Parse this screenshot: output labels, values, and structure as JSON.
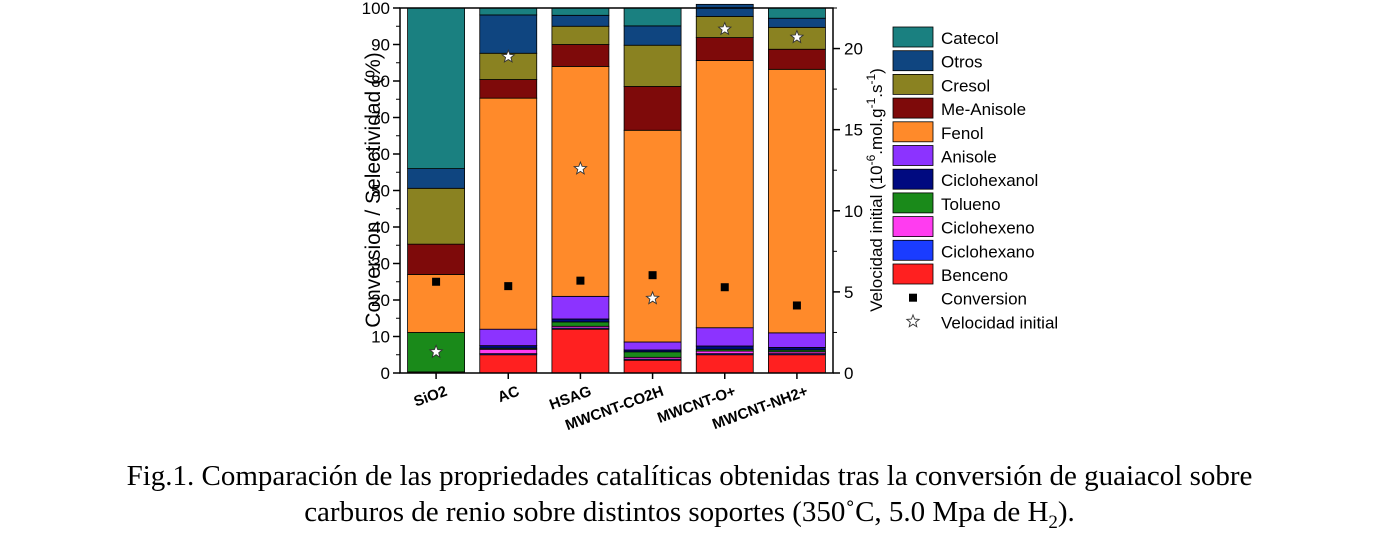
{
  "chart_data": {
    "type": "bar",
    "stacked": true,
    "categories": [
      "SiO2",
      "AC",
      "HSAG",
      "MWCNT-CO2H",
      "MWCNT-O+",
      "MWCNT-NH2+"
    ],
    "ylabel": "Conversion / Selectividad (%)",
    "ylim": [
      0,
      100
    ],
    "yticks": [
      0,
      10,
      20,
      30,
      40,
      50,
      60,
      70,
      80,
      90,
      100
    ],
    "y2label_parts": [
      "Velocidad initial (10",
      "-6",
      ".mol.g",
      "-1",
      ".s",
      "-1",
      ")"
    ],
    "y2lim": [
      0,
      22.5
    ],
    "y2ticks": [
      0,
      5,
      10,
      15,
      20
    ],
    "series": [
      {
        "name": "Benceno",
        "color": "#ff2020",
        "values": [
          0.3,
          5.0,
          12.0,
          3.5,
          5.0,
          5.0
        ]
      },
      {
        "name": "Ciclohexano",
        "color": "#1a3cff",
        "values": [
          0,
          0.3,
          0.3,
          0.3,
          0.3,
          0.3
        ]
      },
      {
        "name": "Ciclohexeno",
        "color": "#ff3cf0",
        "values": [
          0,
          1.2,
          0.5,
          0.5,
          0.7,
          0.5
        ]
      },
      {
        "name": "Tolueno",
        "color": "#1a8a1a",
        "values": [
          10.8,
          0.3,
          1.2,
          1.5,
          0.5,
          0.5
        ]
      },
      {
        "name": "Ciclohexanol",
        "color": "#000a80",
        "values": [
          0,
          0.7,
          0.8,
          0.5,
          0.9,
          0.7
        ]
      },
      {
        "name": "Anisole",
        "color": "#8c33ff",
        "values": [
          0,
          4.5,
          6.2,
          2.2,
          5.0,
          4.0
        ]
      },
      {
        "name": "Fenol",
        "color": "#ff8a2a",
        "values": [
          15.9,
          63.3,
          63.0,
          58.0,
          73.2,
          72.2
        ]
      },
      {
        "name": "Me-Anisole",
        "color": "#7e0a0a",
        "values": [
          8.3,
          5.1,
          6.0,
          12.0,
          6.3,
          5.5
        ]
      },
      {
        "name": "Cresol",
        "color": "#8a8221",
        "values": [
          15.3,
          7.2,
          5.0,
          11.3,
          5.8,
          6.0
        ]
      },
      {
        "name": "Otros",
        "color": "#0f4580",
        "values": [
          5.4,
          10.5,
          3.0,
          5.3,
          3.3,
          2.5
        ]
      },
      {
        "name": "Catecol",
        "color": "#1a8080",
        "values": [
          44.0,
          1.9,
          2.0,
          4.9,
          0,
          2.8
        ]
      }
    ],
    "conversion": {
      "name": "Conversion",
      "values": [
        25.0,
        23.8,
        25.3,
        26.8,
        23.5,
        18.5
      ]
    },
    "velocidad": {
      "name": "Velocidad initial",
      "values": [
        1.3,
        19.5,
        12.6,
        4.6,
        21.2,
        20.7
      ]
    },
    "legend_order": [
      "Catecol",
      "Otros",
      "Cresol",
      "Me-Anisole",
      "Fenol",
      "Anisole",
      "Ciclohexanol",
      "Tolueno",
      "Ciclohexeno",
      "Ciclohexano",
      "Benceno",
      "Conversion",
      "Velocidad initial"
    ],
    "legend_position": "right"
  },
  "caption": {
    "line1": "Fig.1. Comparación de las propriedades catalíticas obtenidas tras la conversión de guaiacol sobre",
    "line2_before": "carburos de renio sobre distintos soportes (350˚C, 5.0 Mpa de H",
    "line2_sub": "2",
    "line2_after": ")."
  }
}
